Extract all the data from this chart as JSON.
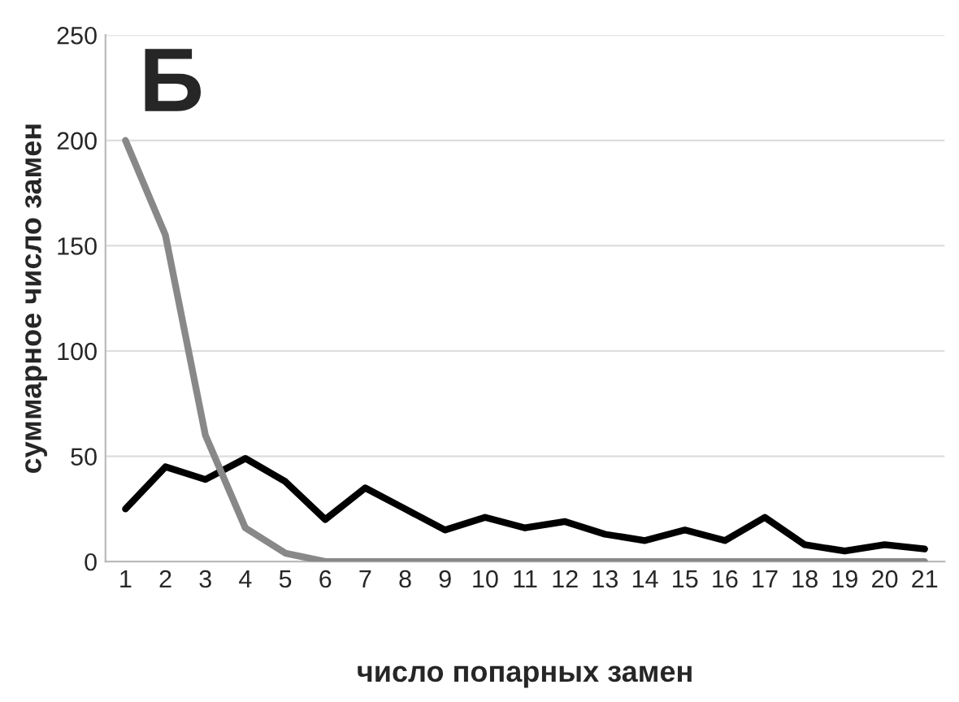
{
  "chart_data": {
    "type": "line",
    "title": "Б",
    "xlabel": "число попарных замен",
    "ylabel": "суммарное число замен",
    "categories": [
      "1",
      "2",
      "3",
      "4",
      "5",
      "6",
      "7",
      "8",
      "9",
      "10",
      "11",
      "12",
      "13",
      "14",
      "15",
      "16",
      "17",
      "18",
      "19",
      "20",
      "21"
    ],
    "series": [
      {
        "color": "#000000",
        "values": [
          25,
          45,
          39,
          49,
          38,
          20,
          35,
          25,
          15,
          21,
          16,
          19,
          13,
          10,
          15,
          10,
          21,
          8,
          5,
          8,
          6
        ]
      },
      {
        "color": "#888888",
        "values": [
          200,
          155,
          60,
          16,
          4,
          0,
          0,
          0,
          0,
          0,
          0,
          0,
          0,
          0,
          0,
          0,
          0,
          0,
          0,
          0,
          0
        ]
      }
    ],
    "ylim": [
      0,
      250
    ],
    "yticks": [
      0,
      50,
      100,
      150,
      200,
      250
    ],
    "grid": "y",
    "legend": false,
    "marker": "none",
    "line_style": "solid"
  }
}
